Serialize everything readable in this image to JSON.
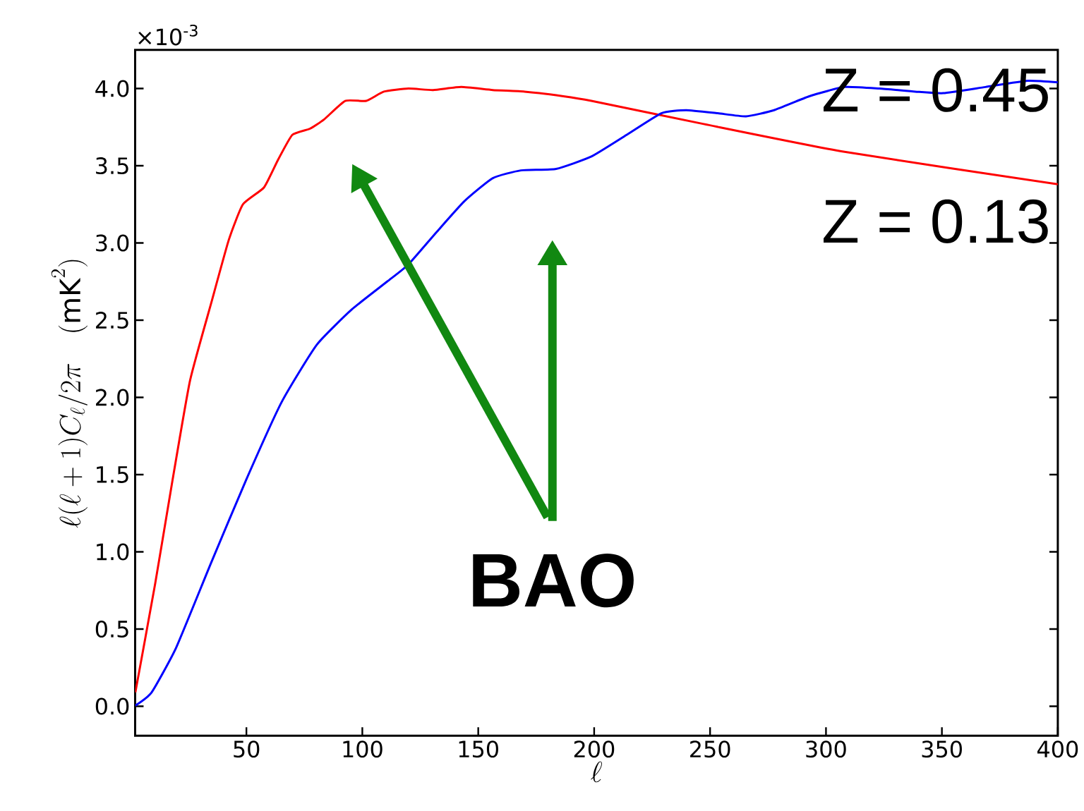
{
  "chart_data": {
    "type": "line",
    "xlabel": "\\ell",
    "ylabel": "\\ell(\\ell+1)C_\\ell/2\\pi\\quad(\\mathrm{mK}^2)",
    "xlim": [
      2,
      400
    ],
    "ylim": [
      -0.19,
      4.25
    ],
    "xticks": [
      50,
      100,
      150,
      200,
      250,
      300,
      350,
      400
    ],
    "yticks": [
      {
        "value": 0,
        "label": "0.0"
      },
      {
        "value": 0.5,
        "label": "0.5"
      },
      {
        "value": 1,
        "label": "1.0"
      },
      {
        "value": 1.5,
        "label": "1.5"
      },
      {
        "value": 2,
        "label": "2.0"
      },
      {
        "value": 2.5,
        "label": "2.5"
      },
      {
        "value": 3,
        "label": "3.0"
      },
      {
        "value": 3.5,
        "label": "3.5"
      },
      {
        "value": 4,
        "label": "4.0"
      }
    ],
    "series": [
      {
        "color": "#ff0000",
        "x": [
          2.1,
          10.6,
          18.2,
          25.7,
          34.8,
          42.4,
          48.5,
          57.6,
          63.7,
          69.8,
          77.4,
          83.5,
          92.6,
          101.7,
          109.3,
          119.9,
          130.5,
          142.7,
          156.3,
          170,
          186.7,
          198.8,
          247.3,
          308,
          400
        ],
        "values": [
          0.09,
          0.79,
          1.47,
          2.11,
          2.61,
          3.02,
          3.25,
          3.36,
          3.54,
          3.7,
          3.74,
          3.8,
          3.92,
          3.92,
          3.98,
          4.0,
          3.99,
          4.01,
          3.99,
          3.98,
          3.95,
          3.92,
          3.77,
          3.59,
          3.38
        ]
      },
      {
        "color": "#0000ff",
        "x": [
          2.1,
          9.1,
          19.7,
          34.8,
          50,
          65.2,
          80.3,
          95.5,
          110.7,
          119.8,
          132,
          144,
          156.3,
          168.4,
          183.6,
          198.8,
          214,
          229,
          239.7,
          253.3,
          265.5,
          277.6,
          292.8,
          308,
          323,
          338.5,
          350.6,
          368.8,
          387,
          400
        ],
        "values": [
          0.005,
          0.09,
          0.38,
          0.93,
          1.47,
          1.97,
          2.34,
          2.57,
          2.75,
          2.86,
          3.07,
          3.27,
          3.42,
          3.47,
          3.48,
          3.56,
          3.7,
          3.84,
          3.86,
          3.84,
          3.82,
          3.86,
          3.95,
          4.01,
          4.0,
          3.98,
          3.97,
          4.01,
          4.05,
          4.04
        ]
      }
    ],
    "annotations": [
      "×10$^{-3}$",
      "Z = 0.45",
      "Z = 0.13",
      "BAO"
    ]
  }
}
